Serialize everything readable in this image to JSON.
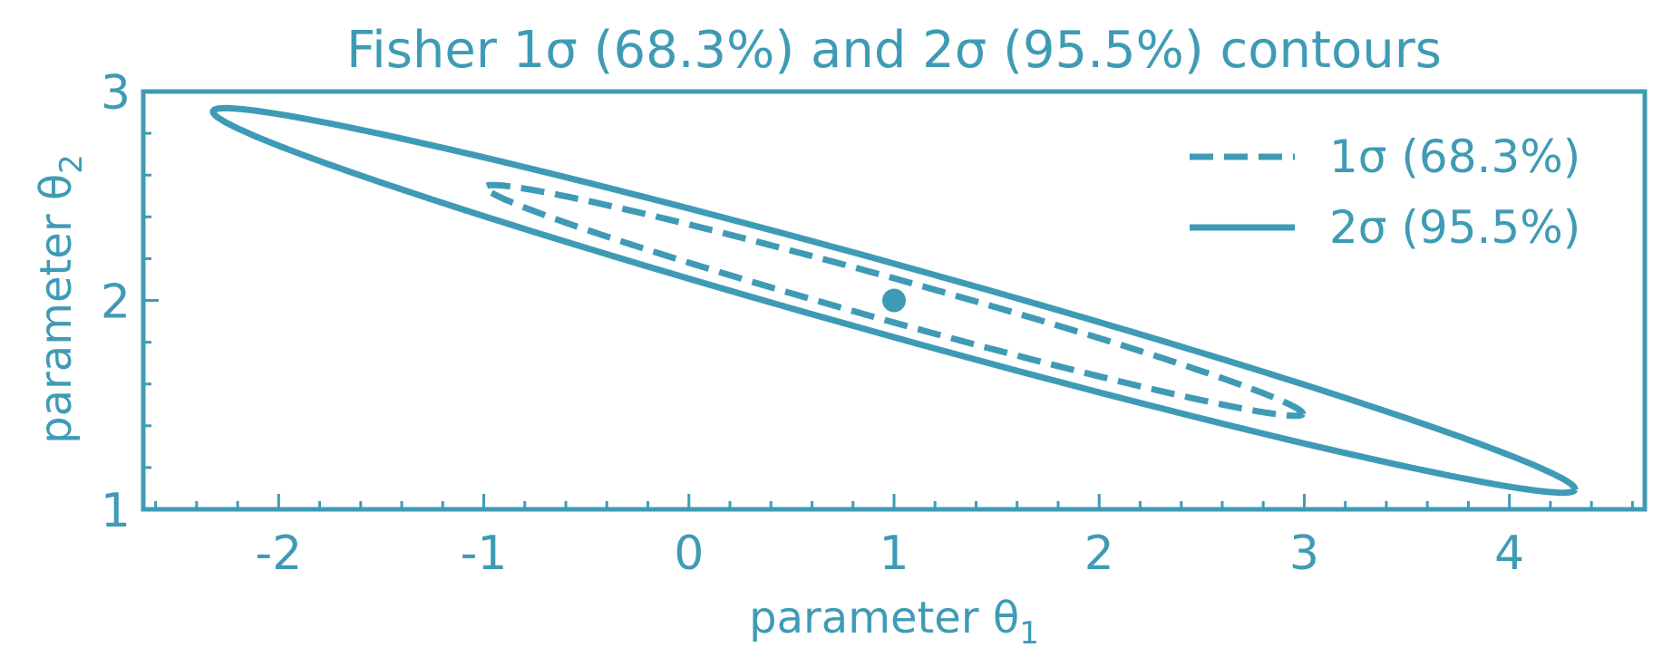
{
  "colors": {
    "accent": "#3f9bb5",
    "background": "#ffffff"
  },
  "chart_data": {
    "type": "scatter",
    "title": "Fisher 1σ (68.3%) and 2σ (95.5%) contours",
    "xlabel": "parameter θ",
    "xlabel_sub": "1",
    "ylabel": "parameter θ",
    "ylabel_sub": "2",
    "xlim": [
      -2.66,
      4.66
    ],
    "ylim": [
      1.0,
      3.0
    ],
    "xticks": [
      -2,
      -1,
      0,
      1,
      2,
      3,
      4
    ],
    "xtick_labels": [
      "-2",
      "-1",
      "0",
      "1",
      "2",
      "3",
      "4"
    ],
    "yticks": [
      1,
      2,
      3
    ],
    "ytick_labels": [
      "1",
      "2",
      "3"
    ],
    "x_minor_step": 0.2,
    "y_minor_step": 0.2,
    "grid": false,
    "legend_position": "top-right",
    "center": {
      "x": 1.0,
      "y": 2.0
    },
    "series": [
      {
        "name": "1σ (68.3%)",
        "style": "dashed",
        "center": [
          1.0,
          2.0
        ],
        "semi_major": 2.065,
        "semi_minor": 0.102,
        "angle_deg": -15.26
      },
      {
        "name": "2σ (95.5%)",
        "style": "solid",
        "center": [
          1.0,
          2.0
        ],
        "semi_major": 3.441,
        "semi_minor": 0.17,
        "angle_deg": -15.26
      }
    ]
  }
}
